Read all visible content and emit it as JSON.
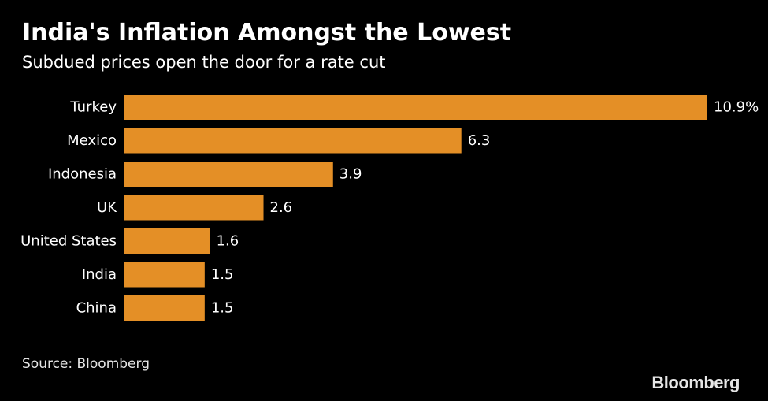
{
  "header": {
    "title": "India's Inflation Amongst the Lowest",
    "subtitle": "Subdued prices open the door for a rate cut"
  },
  "footer": {
    "source": "Source: Bloomberg",
    "logo": "Bloomberg"
  },
  "colors": {
    "background": "#000000",
    "bar": "#e48f26",
    "text": "#ffffff"
  },
  "chart_data": {
    "type": "bar",
    "orientation": "horizontal",
    "title": "India's Inflation Amongst the Lowest",
    "subtitle": "Subdued prices open the door for a rate cut",
    "categories": [
      "Turkey",
      "Mexico",
      "Indonesia",
      "UK",
      "United States",
      "India",
      "China"
    ],
    "values": [
      10.9,
      6.3,
      3.9,
      2.6,
      1.6,
      1.5,
      1.5
    ],
    "value_labels": [
      "10.9%",
      "6.3",
      "3.9",
      "2.6",
      "1.6",
      "1.5",
      "1.5"
    ],
    "xlabel": "",
    "ylabel": "",
    "xlim": [
      0,
      10.9
    ],
    "grid": false,
    "legend": "none"
  }
}
